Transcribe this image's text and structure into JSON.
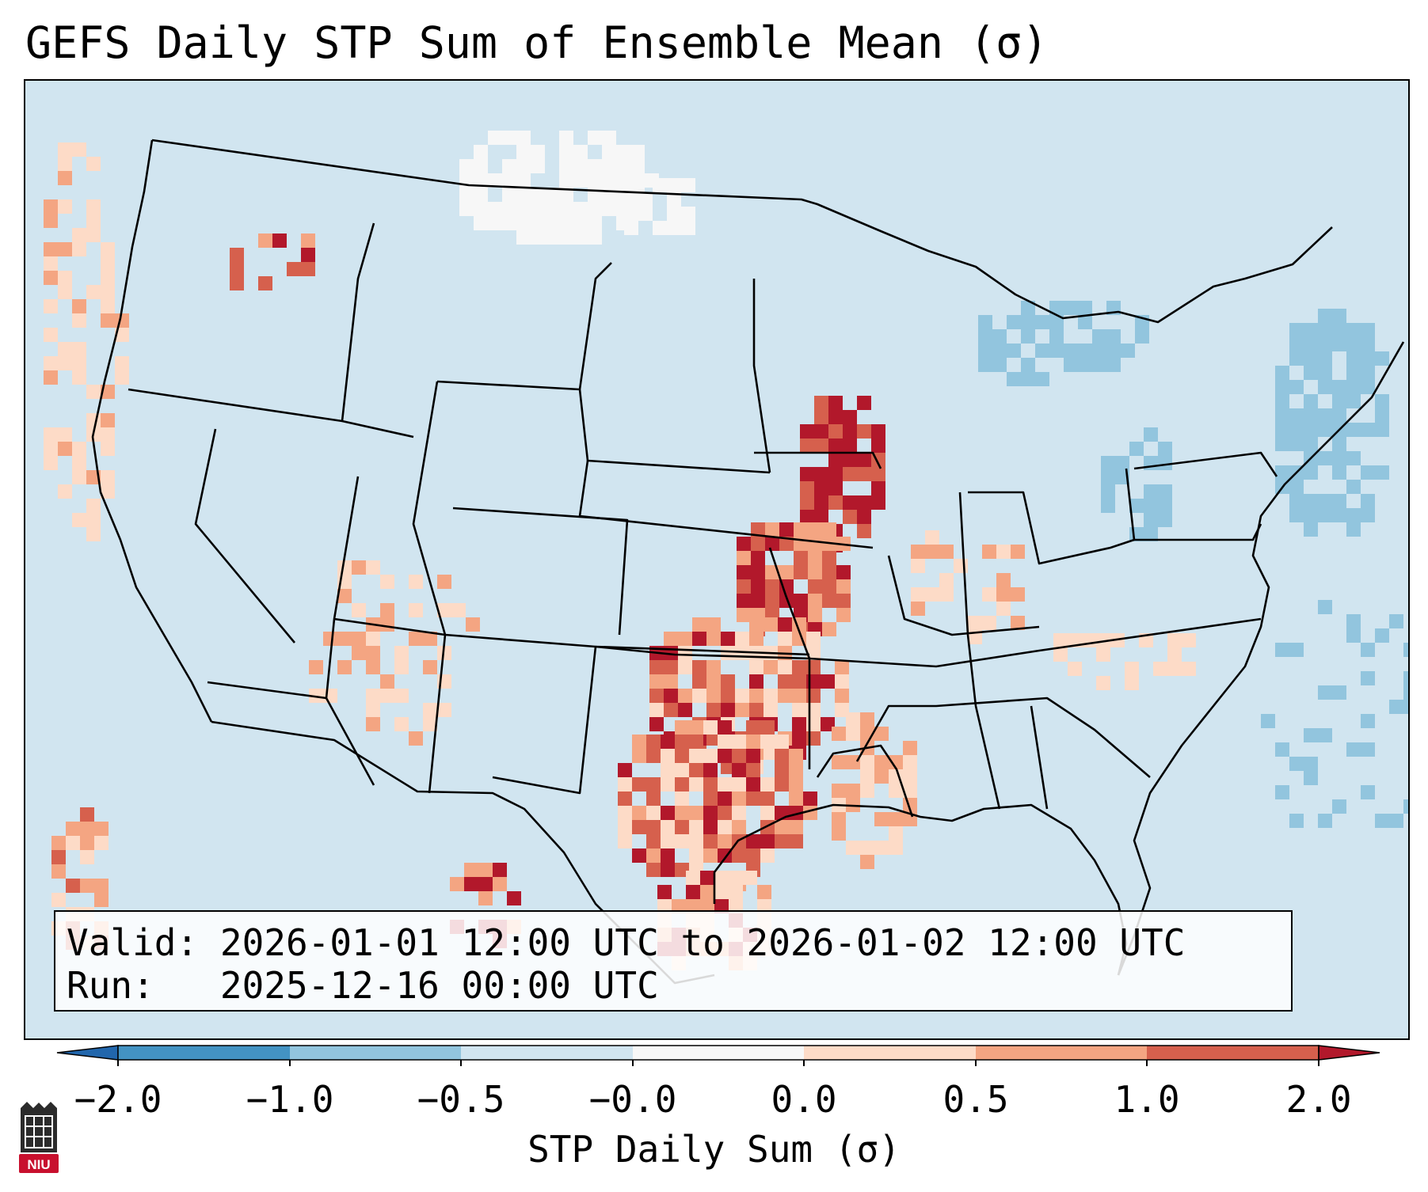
{
  "title": "GEFS Daily STP Sum of Ensemble Mean (σ)",
  "info": {
    "valid_label": "Valid:",
    "valid_value": "2026-01-01 12:00 UTC to 2026-01-02 12:00 UTC",
    "run_label": "Run:",
    "run_value": "2025-12-16 00:00 UTC"
  },
  "colorbar": {
    "label": "STP Daily Sum (σ)",
    "ticks": [
      "−2.0",
      "−1.0",
      "−0.5",
      "−0.0",
      "0.0",
      "0.5",
      "1.0",
      "2.0"
    ],
    "colors": {
      "under": "#2166ac",
      "bin_1": "#4393c3",
      "bin_2": "#92c5de",
      "bin_3": "#d1e5f0",
      "bin_4": "#f7f7f7",
      "bin_5": "#fddbc7",
      "bin_6": "#f4a582",
      "bin_7": "#d6604d",
      "over": "#b2182b"
    }
  },
  "map": {
    "background_color": "#d1e5f0",
    "region": "Contiguous United States"
  },
  "logo": {
    "text": "NIU",
    "color": "#c8102e"
  }
}
